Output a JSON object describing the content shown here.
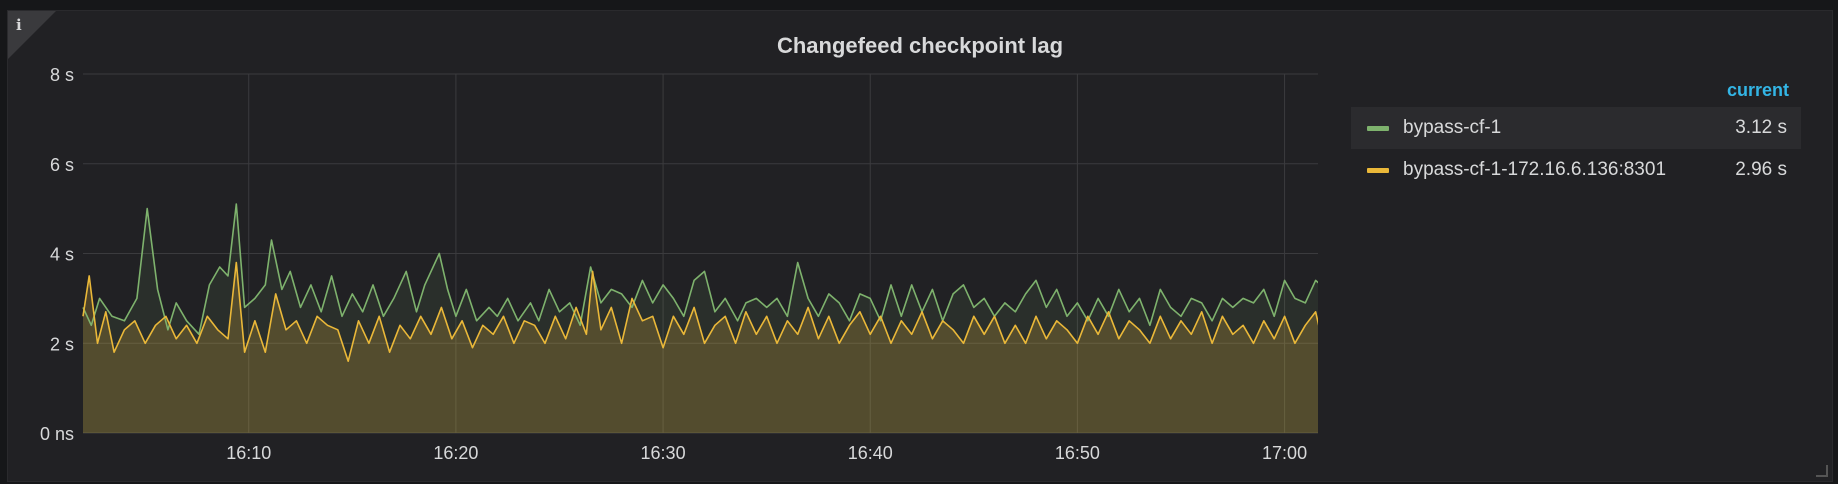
{
  "panel": {
    "title": "Changefeed checkpoint lag",
    "info_icon": "info-icon",
    "resize_icon": "resize-handle-icon"
  },
  "legend": {
    "header": "current",
    "items": [
      {
        "name": "bypass-cf-1",
        "value": "3.12 s",
        "color": "#7eb26d"
      },
      {
        "name": "bypass-cf-1-172.16.6.136:8301",
        "value": "2.96 s",
        "color": "#eab839"
      }
    ]
  },
  "chart_data": {
    "type": "area",
    "x_unit": "minutes",
    "x_start": "16:02",
    "x_end": "17:02",
    "x_ticks": [
      "16:10",
      "16:20",
      "16:30",
      "16:40",
      "16:50",
      "17:00"
    ],
    "y_ticks": [
      "0 ns",
      "2 s",
      "4 s",
      "6 s",
      "8 s"
    ],
    "ylim": [
      0,
      8
    ],
    "grid": true,
    "legend_position": "right",
    "series": [
      {
        "name": "bypass-cf-1",
        "color": "#7eb26d",
        "points": [
          [
            0,
            2.8
          ],
          [
            0.4,
            2.4
          ],
          [
            0.8,
            3.0
          ],
          [
            1.4,
            2.6
          ],
          [
            2.0,
            2.5
          ],
          [
            2.6,
            3.0
          ],
          [
            3.1,
            5.0
          ],
          [
            3.6,
            3.2
          ],
          [
            4.1,
            2.3
          ],
          [
            4.5,
            2.9
          ],
          [
            5.0,
            2.5
          ],
          [
            5.6,
            2.2
          ],
          [
            6.1,
            3.3
          ],
          [
            6.6,
            3.7
          ],
          [
            7.0,
            3.5
          ],
          [
            7.4,
            5.1
          ],
          [
            7.8,
            2.8
          ],
          [
            8.3,
            3.0
          ],
          [
            8.8,
            3.3
          ],
          [
            9.1,
            4.3
          ],
          [
            9.6,
            3.2
          ],
          [
            10.0,
            3.6
          ],
          [
            10.5,
            2.8
          ],
          [
            11.0,
            3.3
          ],
          [
            11.5,
            2.7
          ],
          [
            12.0,
            3.5
          ],
          [
            12.5,
            2.6
          ],
          [
            13.0,
            3.1
          ],
          [
            13.5,
            2.7
          ],
          [
            14.0,
            3.3
          ],
          [
            14.5,
            2.6
          ],
          [
            15.0,
            3.0
          ],
          [
            15.6,
            3.6
          ],
          [
            16.1,
            2.7
          ],
          [
            16.5,
            3.3
          ],
          [
            17.2,
            4.0
          ],
          [
            17.6,
            3.2
          ],
          [
            18.0,
            2.6
          ],
          [
            18.5,
            3.2
          ],
          [
            19.0,
            2.5
          ],
          [
            19.6,
            2.8
          ],
          [
            20.0,
            2.6
          ],
          [
            20.5,
            3.0
          ],
          [
            21.0,
            2.5
          ],
          [
            21.6,
            2.9
          ],
          [
            22.0,
            2.5
          ],
          [
            22.5,
            3.2
          ],
          [
            23.0,
            2.7
          ],
          [
            23.5,
            2.9
          ],
          [
            24.0,
            2.4
          ],
          [
            24.5,
            3.7
          ],
          [
            25.0,
            2.9
          ],
          [
            25.5,
            3.2
          ],
          [
            26.0,
            3.1
          ],
          [
            26.5,
            2.8
          ],
          [
            27.0,
            3.4
          ],
          [
            27.5,
            2.9
          ],
          [
            28.0,
            3.3
          ],
          [
            28.5,
            3.0
          ],
          [
            29.0,
            2.6
          ],
          [
            29.5,
            3.4
          ],
          [
            30.0,
            3.6
          ],
          [
            30.5,
            2.7
          ],
          [
            31.0,
            3.0
          ],
          [
            31.6,
            2.5
          ],
          [
            32.0,
            2.9
          ],
          [
            32.5,
            3.0
          ],
          [
            33.0,
            2.8
          ],
          [
            33.5,
            3.0
          ],
          [
            34.0,
            2.6
          ],
          [
            34.5,
            3.8
          ],
          [
            35.0,
            3.0
          ],
          [
            35.5,
            2.6
          ],
          [
            36.0,
            3.1
          ],
          [
            36.5,
            2.9
          ],
          [
            37.0,
            2.5
          ],
          [
            37.5,
            3.1
          ],
          [
            38.0,
            3.0
          ],
          [
            38.5,
            2.5
          ],
          [
            39.0,
            3.3
          ],
          [
            39.5,
            2.6
          ],
          [
            40.0,
            3.3
          ],
          [
            40.5,
            2.7
          ],
          [
            41.0,
            3.2
          ],
          [
            41.5,
            2.5
          ],
          [
            42.0,
            3.1
          ],
          [
            42.5,
            3.3
          ],
          [
            43.0,
            2.8
          ],
          [
            43.5,
            3.0
          ],
          [
            44.0,
            2.6
          ],
          [
            44.5,
            2.9
          ],
          [
            45.0,
            2.7
          ],
          [
            45.5,
            3.1
          ],
          [
            46.0,
            3.4
          ],
          [
            46.5,
            2.8
          ],
          [
            47.0,
            3.2
          ],
          [
            47.5,
            2.6
          ],
          [
            48.0,
            2.9
          ],
          [
            48.5,
            2.5
          ],
          [
            49.0,
            3.0
          ],
          [
            49.5,
            2.6
          ],
          [
            50.0,
            3.2
          ],
          [
            50.5,
            2.7
          ],
          [
            51.0,
            3.0
          ],
          [
            51.5,
            2.4
          ],
          [
            52.0,
            3.2
          ],
          [
            52.5,
            2.8
          ],
          [
            53.0,
            2.6
          ],
          [
            53.5,
            3.0
          ],
          [
            54.0,
            2.9
          ],
          [
            54.5,
            2.5
          ],
          [
            55.0,
            3.0
          ],
          [
            55.5,
            2.8
          ],
          [
            56.0,
            3.0
          ],
          [
            56.5,
            2.9
          ],
          [
            57.0,
            3.2
          ],
          [
            57.5,
            2.6
          ],
          [
            58.0,
            3.4
          ],
          [
            58.5,
            3.0
          ],
          [
            59.0,
            2.9
          ],
          [
            59.5,
            3.4
          ],
          [
            60.0,
            3.2
          ],
          [
            60.5,
            3.1
          ]
        ]
      },
      {
        "name": "bypass-cf-1-172.16.6.136:8301",
        "color": "#eab839",
        "points": [
          [
            0,
            2.6
          ],
          [
            0.3,
            3.5
          ],
          [
            0.7,
            2.0
          ],
          [
            1.1,
            2.7
          ],
          [
            1.5,
            1.8
          ],
          [
            2.0,
            2.3
          ],
          [
            2.5,
            2.5
          ],
          [
            3.0,
            2.0
          ],
          [
            3.5,
            2.4
          ],
          [
            4.0,
            2.6
          ],
          [
            4.5,
            2.1
          ],
          [
            5.0,
            2.4
          ],
          [
            5.5,
            2.0
          ],
          [
            6.0,
            2.6
          ],
          [
            6.5,
            2.3
          ],
          [
            7.0,
            2.1
          ],
          [
            7.4,
            3.8
          ],
          [
            7.8,
            1.8
          ],
          [
            8.3,
            2.5
          ],
          [
            8.8,
            1.8
          ],
          [
            9.3,
            3.1
          ],
          [
            9.8,
            2.3
          ],
          [
            10.3,
            2.5
          ],
          [
            10.8,
            2.0
          ],
          [
            11.3,
            2.6
          ],
          [
            11.8,
            2.4
          ],
          [
            12.3,
            2.3
          ],
          [
            12.8,
            1.6
          ],
          [
            13.3,
            2.5
          ],
          [
            13.8,
            2.0
          ],
          [
            14.3,
            2.6
          ],
          [
            14.8,
            1.8
          ],
          [
            15.3,
            2.4
          ],
          [
            15.8,
            2.1
          ],
          [
            16.3,
            2.6
          ],
          [
            16.8,
            2.2
          ],
          [
            17.3,
            2.8
          ],
          [
            17.8,
            2.1
          ],
          [
            18.3,
            2.5
          ],
          [
            18.8,
            1.9
          ],
          [
            19.3,
            2.4
          ],
          [
            19.8,
            2.2
          ],
          [
            20.3,
            2.6
          ],
          [
            20.8,
            2.0
          ],
          [
            21.3,
            2.5
          ],
          [
            21.8,
            2.4
          ],
          [
            22.3,
            2.0
          ],
          [
            22.8,
            2.6
          ],
          [
            23.3,
            2.1
          ],
          [
            23.8,
            2.8
          ],
          [
            24.3,
            2.2
          ],
          [
            24.6,
            3.6
          ],
          [
            25.0,
            2.3
          ],
          [
            25.5,
            2.8
          ],
          [
            26.0,
            2.0
          ],
          [
            26.5,
            3.0
          ],
          [
            27.0,
            2.5
          ],
          [
            27.5,
            2.6
          ],
          [
            28.0,
            1.9
          ],
          [
            28.5,
            2.6
          ],
          [
            29.0,
            2.2
          ],
          [
            29.5,
            2.8
          ],
          [
            30.0,
            2.0
          ],
          [
            30.5,
            2.4
          ],
          [
            31.0,
            2.6
          ],
          [
            31.5,
            2.0
          ],
          [
            32.0,
            2.7
          ],
          [
            32.5,
            2.2
          ],
          [
            33.0,
            2.6
          ],
          [
            33.5,
            2.0
          ],
          [
            34.0,
            2.5
          ],
          [
            34.5,
            2.2
          ],
          [
            35.0,
            2.8
          ],
          [
            35.5,
            2.1
          ],
          [
            36.0,
            2.6
          ],
          [
            36.5,
            2.0
          ],
          [
            37.0,
            2.4
          ],
          [
            37.5,
            2.7
          ],
          [
            38.0,
            2.2
          ],
          [
            38.5,
            2.6
          ],
          [
            39.0,
            2.0
          ],
          [
            39.5,
            2.5
          ],
          [
            40.0,
            2.2
          ],
          [
            40.5,
            2.7
          ],
          [
            41.0,
            2.1
          ],
          [
            41.5,
            2.5
          ],
          [
            42.0,
            2.3
          ],
          [
            42.5,
            2.0
          ],
          [
            43.0,
            2.6
          ],
          [
            43.5,
            2.2
          ],
          [
            44.0,
            2.6
          ],
          [
            44.5,
            2.0
          ],
          [
            45.0,
            2.4
          ],
          [
            45.5,
            2.0
          ],
          [
            46.0,
            2.6
          ],
          [
            46.5,
            2.1
          ],
          [
            47.0,
            2.5
          ],
          [
            47.5,
            2.3
          ],
          [
            48.0,
            2.0
          ],
          [
            48.5,
            2.6
          ],
          [
            49.0,
            2.2
          ],
          [
            49.5,
            2.7
          ],
          [
            50.0,
            2.1
          ],
          [
            50.5,
            2.5
          ],
          [
            51.0,
            2.3
          ],
          [
            51.5,
            2.0
          ],
          [
            52.0,
            2.6
          ],
          [
            52.5,
            2.1
          ],
          [
            53.0,
            2.5
          ],
          [
            53.5,
            2.2
          ],
          [
            54.0,
            2.7
          ],
          [
            54.5,
            2.0
          ],
          [
            55.0,
            2.6
          ],
          [
            55.5,
            2.2
          ],
          [
            56.0,
            2.4
          ],
          [
            56.5,
            2.0
          ],
          [
            57.0,
            2.5
          ],
          [
            57.5,
            2.1
          ],
          [
            58.0,
            2.6
          ],
          [
            58.5,
            2.0
          ],
          [
            59.0,
            2.4
          ],
          [
            59.5,
            2.7
          ],
          [
            60.0,
            1.7
          ],
          [
            60.5,
            2.96
          ]
        ]
      }
    ]
  }
}
